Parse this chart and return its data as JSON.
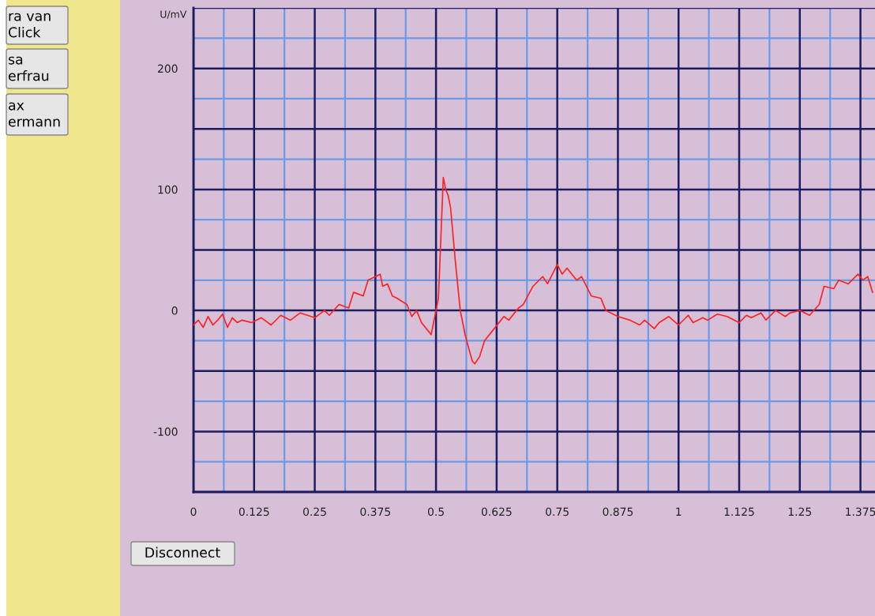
{
  "chart_data": {
    "type": "line",
    "ylabel": "U/mV",
    "x": [
      0,
      0.01,
      0.02,
      0.03,
      0.04,
      0.05,
      0.06,
      0.07,
      0.08,
      0.09,
      0.1,
      0.12,
      0.14,
      0.16,
      0.18,
      0.2,
      0.22,
      0.25,
      0.27,
      0.28,
      0.3,
      0.32,
      0.33,
      0.35,
      0.36,
      0.375,
      0.385,
      0.39,
      0.4,
      0.41,
      0.42,
      0.44,
      0.45,
      0.46,
      0.47,
      0.48,
      0.49,
      0.5,
      0.505,
      0.51,
      0.515,
      0.52,
      0.525,
      0.53,
      0.54,
      0.55,
      0.56,
      0.57,
      0.575,
      0.58,
      0.59,
      0.6,
      0.62,
      0.64,
      0.65,
      0.67,
      0.68,
      0.7,
      0.72,
      0.73,
      0.75,
      0.76,
      0.77,
      0.79,
      0.8,
      0.82,
      0.84,
      0.85,
      0.875,
      0.9,
      0.92,
      0.93,
      0.95,
      0.96,
      0.98,
      1.0,
      1.02,
      1.03,
      1.05,
      1.06,
      1.08,
      1.1,
      1.125,
      1.14,
      1.15,
      1.17,
      1.18,
      1.2,
      1.22,
      1.23,
      1.25,
      1.27,
      1.29,
      1.3,
      1.32,
      1.33,
      1.35,
      1.37,
      1.38,
      1.39,
      1.4
    ],
    "series": [
      {
        "color": "#ff2020",
        "values": [
          -12,
          -8,
          -14,
          -5,
          -12,
          -8,
          -3,
          -14,
          -6,
          -10,
          -8,
          -10,
          -6,
          -12,
          -4,
          -8,
          -2,
          -6,
          0,
          -4,
          5,
          2,
          15,
          12,
          25,
          28,
          30,
          20,
          22,
          12,
          10,
          5,
          -5,
          0,
          -10,
          -15,
          -20,
          0,
          10,
          60,
          110,
          100,
          95,
          85,
          40,
          0,
          -20,
          -35,
          -42,
          -44,
          -38,
          -25,
          -15,
          -5,
          -8,
          2,
          5,
          20,
          28,
          22,
          38,
          30,
          35,
          25,
          28,
          12,
          10,
          0,
          -5,
          -8,
          -12,
          -8,
          -15,
          -10,
          -5,
          -12,
          -4,
          -10,
          -6,
          -8,
          -3,
          -5,
          -10,
          -4,
          -6,
          -2,
          -8,
          0,
          -5,
          -2,
          0,
          -4,
          5,
          20,
          18,
          25,
          22,
          30,
          25,
          28,
          15
        ]
      }
    ],
    "xlim": [
      0,
      1.405
    ],
    "ylim": [
      -150,
      250
    ],
    "xticks": [
      0,
      0.125,
      0.25,
      0.375,
      0.5,
      0.625,
      0.75,
      0.875,
      1,
      1.125,
      1.25,
      1.375
    ],
    "yticks": [
      {
        "value": -150,
        "label": null
      },
      -100,
      {
        "value": -50,
        "label": null
      },
      0,
      {
        "value": 50,
        "label": null
      },
      100,
      {
        "value": 150,
        "label": null
      },
      200,
      {
        "value": 250,
        "label": null
      }
    ],
    "ref_lines": [
      {
        "axis": "x",
        "value": 0.0625,
        "color": "#6a9ae8"
      },
      {
        "axis": "x",
        "value": 0.1875,
        "color": "#6a9ae8"
      },
      {
        "axis": "x",
        "value": 0.3125,
        "color": "#6a9ae8"
      },
      {
        "axis": "x",
        "value": 0.4375,
        "color": "#6a9ae8"
      },
      {
        "axis": "x",
        "value": 0.5625,
        "color": "#6a9ae8"
      },
      {
        "axis": "x",
        "value": 0.6875,
        "color": "#6a9ae8"
      },
      {
        "axis": "x",
        "value": 0.8125,
        "color": "#6a9ae8"
      },
      {
        "axis": "x",
        "value": 0.9375,
        "color": "#6a9ae8"
      },
      {
        "axis": "x",
        "value": 1.0625,
        "color": "#6a9ae8"
      },
      {
        "axis": "x",
        "value": 1.1875,
        "color": "#6a9ae8"
      },
      {
        "axis": "x",
        "value": 1.3125,
        "color": "#6a9ae8"
      },
      {
        "axis": "y",
        "value": -125,
        "color": "#6a9ae8"
      },
      {
        "axis": "y",
        "value": -75,
        "color": "#6a9ae8"
      },
      {
        "axis": "y",
        "value": -25,
        "color": "#6a9ae8"
      },
      {
        "axis": "y",
        "value": 25,
        "color": "#6a9ae8"
      },
      {
        "axis": "y",
        "value": 75,
        "color": "#6a9ae8"
      },
      {
        "axis": "y",
        "value": 125,
        "color": "#6a9ae8"
      },
      {
        "axis": "y",
        "value": 175,
        "color": "#6a9ae8"
      },
      {
        "axis": "y",
        "value": 225,
        "color": "#6a9ae8"
      }
    ],
    "grid": true,
    "marker": "none",
    "line_style": "solid",
    "annotations": [
      "ra van Click",
      "sa erfrau",
      "ax ermann",
      "Disconnect"
    ]
  }
}
